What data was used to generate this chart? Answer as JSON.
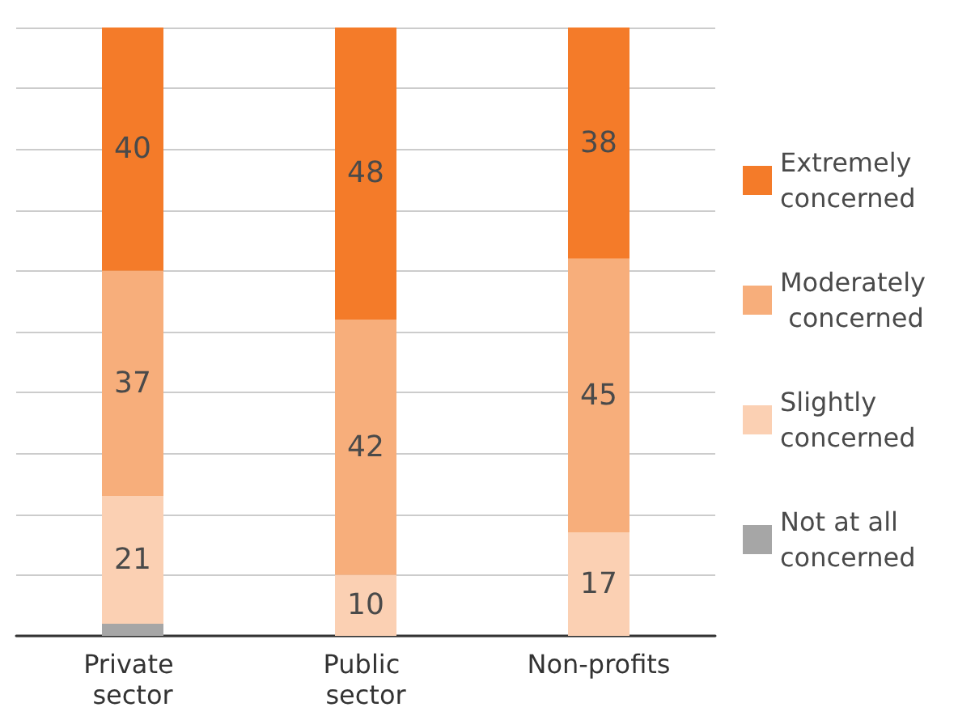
{
  "chart_data": {
    "type": "bar",
    "stacked": true,
    "categories": [
      "Private sector",
      "Public sector",
      "Non-profits"
    ],
    "series": [
      {
        "name": "Not at all concerned",
        "color": "#a6a6a6",
        "values": [
          2,
          0,
          0
        ],
        "value_labels": [
          null,
          null,
          null
        ]
      },
      {
        "name": "Slightly concerned",
        "color": "#fbd0b3",
        "values": [
          21,
          10,
          17
        ],
        "value_labels": [
          "21",
          "10",
          "17"
        ]
      },
      {
        "name": "Moderately concerned",
        "color": "#f7ae7b",
        "values": [
          37,
          42,
          45
        ],
        "value_labels": [
          "37",
          "42",
          "45"
        ]
      },
      {
        "name": "Extremely concerned",
        "color": "#f47b29",
        "values": [
          40,
          48,
          38
        ],
        "value_labels": [
          "40",
          "48",
          "38"
        ]
      }
    ],
    "ylim": [
      0,
      100
    ],
    "yticks": [
      {
        "value": 0,
        "label": null
      },
      {
        "value": 10,
        "label": null
      },
      {
        "value": 20,
        "label": null
      },
      {
        "value": 30,
        "label": null
      },
      {
        "value": 40,
        "label": null
      },
      {
        "value": 50,
        "label": null
      },
      {
        "value": 60,
        "label": null
      },
      {
        "value": 70,
        "label": null
      },
      {
        "value": 80,
        "label": null
      },
      {
        "value": 90,
        "label": null
      },
      {
        "value": 100,
        "label": null
      }
    ],
    "tick_labels": "x",
    "grid": "y",
    "legend": "right"
  }
}
